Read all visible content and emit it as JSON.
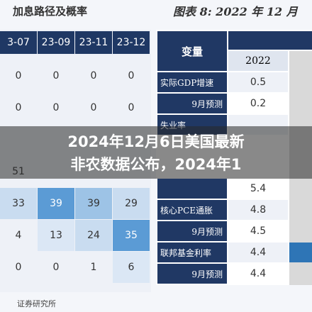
{
  "header": {
    "left_title": "加息路径及概率",
    "right_title": "图表 8: 2022 年 12 月"
  },
  "left_table": {
    "columns": [
      "3-07",
      "23-09",
      "23-11",
      "23-12"
    ],
    "rows": [
      [
        "0",
        "0",
        "0",
        "0"
      ],
      [
        "0",
        "0",
        "0",
        "0"
      ],
      [
        "51"
      ],
      [
        "33",
        "39",
        "39",
        "29"
      ],
      [
        "4",
        "13",
        "24",
        "35"
      ],
      [
        "0",
        "0",
        "1",
        "6"
      ]
    ]
  },
  "right_table": {
    "header": "变量",
    "year": "2022",
    "rows": [
      {
        "label": "实际GDP增速",
        "value": "0.5"
      },
      {
        "label": "9月预测",
        "value": "0.2"
      },
      {
        "label": "失业率"
      },
      {
        "value": "5.4"
      },
      {
        "label": "核心PCE通胀",
        "value": "4.8"
      },
      {
        "label": "9月预测",
        "value": "4.5"
      },
      {
        "label": "联邦基金利率",
        "value": "4.4"
      },
      {
        "label": "9月预测",
        "value": "4.4"
      }
    ]
  },
  "overlay": {
    "lines": [
      "2024年12月6日美国最新",
      "非农数据公布，2024年1"
    ]
  },
  "source": "证券研究所"
}
